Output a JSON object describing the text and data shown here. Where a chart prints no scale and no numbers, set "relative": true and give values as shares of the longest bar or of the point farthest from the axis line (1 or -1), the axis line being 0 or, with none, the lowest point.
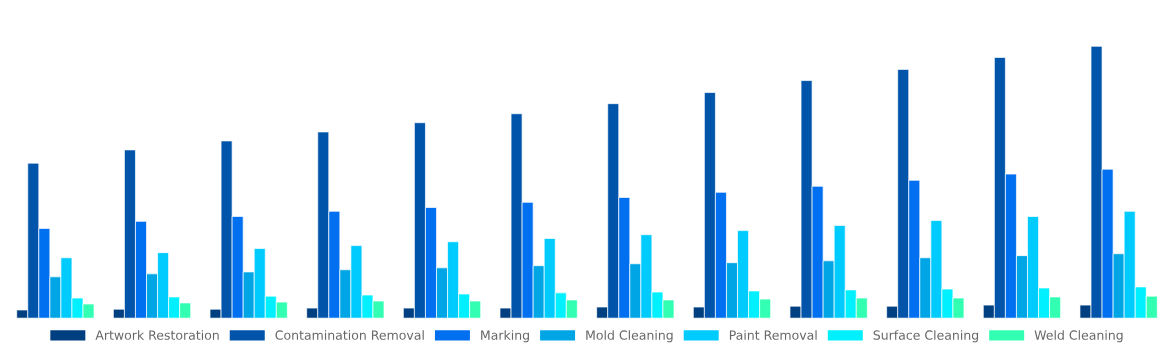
{
  "chart_data": {
    "type": "bar",
    "relative": true,
    "legend": "bottom",
    "grid": false,
    "categories": [
      null,
      null,
      null,
      null,
      null,
      null,
      null,
      null,
      null,
      null,
      null,
      null
    ],
    "series": [
      {
        "name": "Artwork Restoration",
        "color": "#003f80",
        "values": [
          0.03,
          0.033,
          0.033,
          0.037,
          0.037,
          0.037,
          0.041,
          0.041,
          0.044,
          0.044,
          0.048,
          0.048
        ]
      },
      {
        "name": "Contamination Removal",
        "color": "#0055aa",
        "values": [
          0.57,
          0.619,
          0.652,
          0.685,
          0.719,
          0.752,
          0.789,
          0.83,
          0.874,
          0.915,
          0.959,
          1
        ]
      },
      {
        "name": "Marking",
        "color": "#006ff0",
        "values": [
          0.33,
          0.356,
          0.374,
          0.393,
          0.407,
          0.426,
          0.444,
          0.463,
          0.485,
          0.507,
          0.53,
          0.548
        ]
      },
      {
        "name": "Mold Cleaning",
        "color": "#00a5e5",
        "values": [
          0.152,
          0.163,
          0.17,
          0.178,
          0.185,
          0.193,
          0.2,
          0.204,
          0.211,
          0.222,
          0.23,
          0.237
        ]
      },
      {
        "name": "Paint Removal",
        "color": "#00cbff",
        "values": [
          0.222,
          0.241,
          0.256,
          0.267,
          0.281,
          0.293,
          0.307,
          0.322,
          0.341,
          0.359,
          0.374,
          0.393
        ]
      },
      {
        "name": "Surface Cleaning",
        "color": "#00f0ff",
        "values": [
          0.074,
          0.078,
          0.081,
          0.085,
          0.089,
          0.093,
          0.096,
          0.1,
          0.104,
          0.107,
          0.111,
          0.115
        ]
      },
      {
        "name": "Weld Cleaning",
        "color": "#33ffb3",
        "values": [
          0.052,
          0.056,
          0.059,
          0.063,
          0.063,
          0.067,
          0.067,
          0.07,
          0.074,
          0.074,
          0.078,
          0.081
        ]
      }
    ]
  }
}
